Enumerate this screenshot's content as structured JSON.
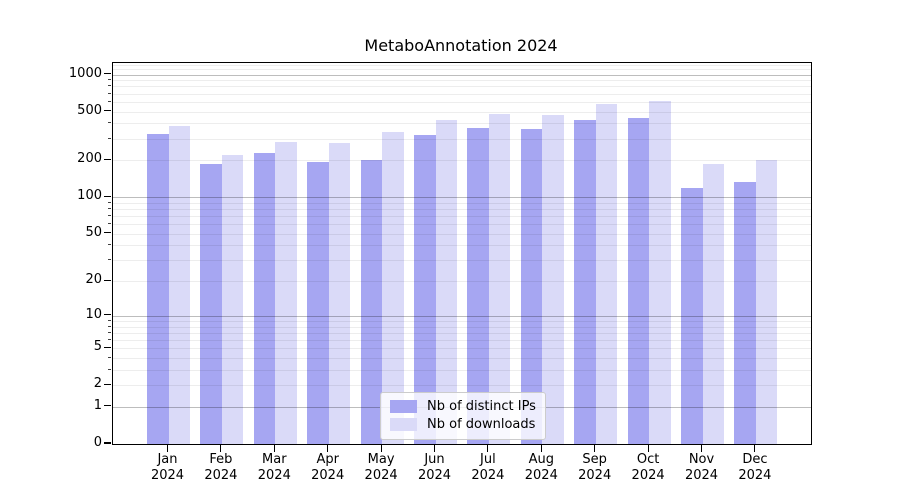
{
  "chart_data": {
    "type": "bar",
    "title": "MetaboAnnotation 2024",
    "categories": [
      "Jan 2024",
      "Feb 2024",
      "Mar 2024",
      "Apr 2024",
      "May 2024",
      "Jun 2024",
      "Jul 2024",
      "Aug 2024",
      "Sep 2024",
      "Oct 2024",
      "Nov 2024",
      "Dec 2024"
    ],
    "series": [
      {
        "name": "Nb of distinct IPs",
        "color": "#a6a6f2",
        "values": [
          330,
          188,
          228,
          195,
          203,
          325,
          370,
          364,
          423,
          447,
          118,
          134
        ]
      },
      {
        "name": "Nb of downloads",
        "color": "#dadaf8",
        "values": [
          380,
          222,
          285,
          275,
          338,
          428,
          475,
          465,
          580,
          615,
          188,
          203
        ]
      }
    ],
    "yscale": "symlog",
    "yticks": [
      0,
      1,
      2,
      5,
      10,
      20,
      50,
      100,
      200,
      500,
      1000
    ],
    "ylim": [
      0,
      1240
    ],
    "xlabel": "",
    "ylabel": "",
    "grid": true,
    "legend_position": "bottom-center",
    "colors": {
      "grid_minor": "rgba(0,0,0,0.07)",
      "grid_decade": "rgba(0,0,0,0.26)",
      "axis": "#000000",
      "background": "#ffffff"
    }
  }
}
